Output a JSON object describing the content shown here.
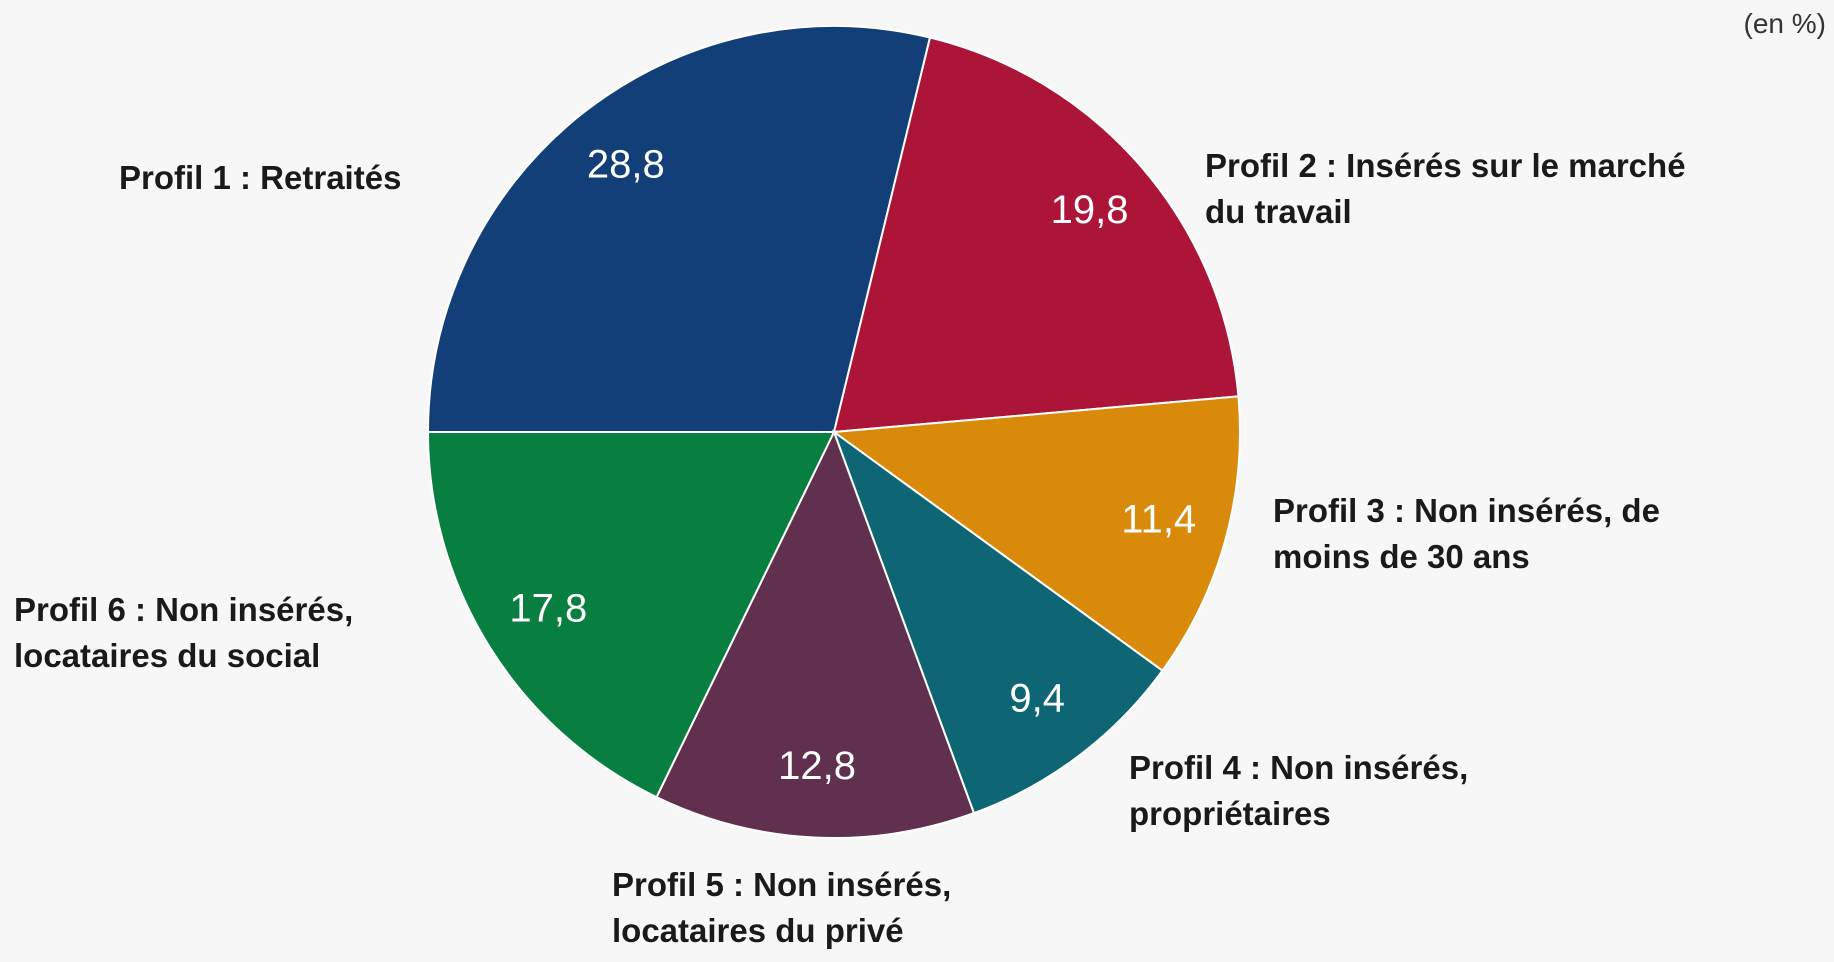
{
  "chart_data": {
    "type": "pie",
    "subtitle": "(en %)",
    "categories": [
      "Profil 1 : Retraités",
      "Profil 2 : Insérés sur le marché du travail",
      "Profil 3 : Non insérés, de moins de 30 ans",
      "Profil 4 : Non insérés, propriétaires",
      "Profil 5 : Non insérés, locataires du privé",
      "Profil 6 : Non insérés, locataires du social"
    ],
    "values": [
      28.8,
      19.8,
      11.4,
      9.4,
      12.8,
      17.8
    ],
    "value_labels": [
      "28,8",
      "19,8",
      "11,4",
      "9,4",
      "12,8",
      "17,8"
    ],
    "colors": [
      "#123f78",
      "#ad1538",
      "#d98a0a",
      "#0e6674",
      "#61304e",
      "#087f40"
    ]
  }
}
